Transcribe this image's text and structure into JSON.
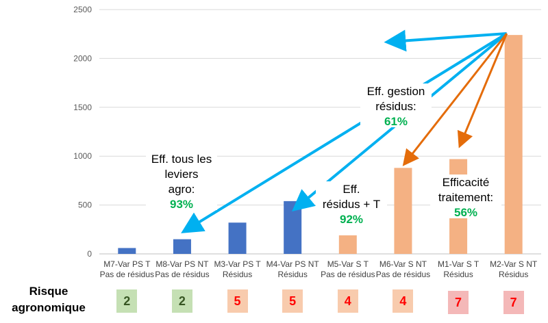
{
  "chart_data": {
    "type": "bar",
    "title": "",
    "xlabel": "",
    "ylabel": "",
    "ylim": [
      0,
      2500
    ],
    "yticks": [
      0,
      500,
      1000,
      1500,
      2000,
      2500
    ],
    "grid": true,
    "categories": [
      [
        "M7-Var PS T",
        "Pas de résidus"
      ],
      [
        "M8-Var PS NT",
        "Pas de résidus"
      ],
      [
        "M3-Var PS T",
        "Résidus"
      ],
      [
        "M4-Var PS NT",
        "Résidus"
      ],
      [
        "M5-Var S T",
        "Pas de résidus"
      ],
      [
        "M6-Var S NT",
        "Pas de résidus"
      ],
      [
        "M1-Var S T",
        "Résidus"
      ],
      [
        "M2-Var S NT",
        "Résidus"
      ]
    ],
    "values": [
      60,
      150,
      320,
      540,
      190,
      880,
      970,
      2240
    ],
    "bar_colors": [
      "#4472c4",
      "#4472c4",
      "#4472c4",
      "#4472c4",
      "#f4b183",
      "#f4b183",
      "#f4b183",
      "#f4b183"
    ],
    "annotations": [
      {
        "lines": [
          "Eff. tous les",
          "leviers",
          "agro:"
        ],
        "value": "93%"
      },
      {
        "lines": [
          "Eff.",
          "résidus + T"
        ],
        "value": "92%"
      },
      {
        "lines": [
          "Eff. gestion",
          "résidus:"
        ],
        "value": "61%"
      },
      {
        "lines": [
          "Efficacité",
          "traitement:"
        ],
        "value": "56%"
      }
    ],
    "arrow_colors": {
      "blue": "#00b0f0",
      "orange": "#e46c0a",
      "value_text": "#00b050"
    }
  },
  "risk": {
    "title_lines": [
      "Risque",
      "agronomique"
    ],
    "values": [
      "2",
      "2",
      "5",
      "5",
      "4",
      "4",
      "7",
      "7"
    ],
    "box_colors": [
      "#c5e0b4",
      "#c5e0b4",
      "#f8cbad",
      "#f8cbad",
      "#f8cbad",
      "#f8cbad",
      "#f4b8b8",
      "#f4b8b8"
    ],
    "text_colors": [
      "#375623",
      "#375623",
      "#ff0000",
      "#ff0000",
      "#ff0000",
      "#ff0000",
      "#ff0000",
      "#ff0000"
    ]
  }
}
